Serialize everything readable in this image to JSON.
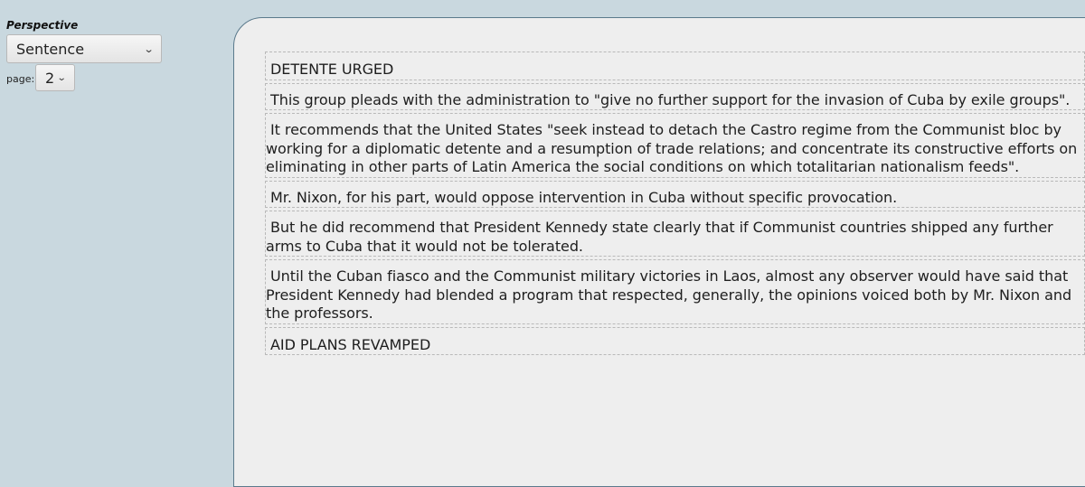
{
  "sidebar": {
    "perspective_label": "Perspective",
    "perspective_value": "Sentence",
    "page_label": "page:",
    "page_value": "2"
  },
  "icons": {
    "dropdown": "chevron-down-icon"
  },
  "colors": {
    "background": "#c9d8df",
    "panel": "#eeeeee",
    "panel_border": "#5b7a8c"
  },
  "sentences": [
    "DETENTE URGED",
    "This group pleads with the administration to \"give no further support for the invasion of Cuba by exile groups\".",
    "It recommends that the United States \"seek instead to detach the Castro regime from the Communist bloc by working for a diplomatic detente and a resumption of trade relations; and concentrate its constructive efforts on eliminating in other parts of Latin America the social conditions on which totalitarian nationalism feeds\".",
    "Mr. Nixon, for his part, would oppose intervention in Cuba without specific provocation.",
    "But he did recommend that President Kennedy state clearly that if Communist countries shipped any further arms to Cuba that it would not be tolerated.",
    "Until the Cuban fiasco and the Communist military victories in Laos, almost any observer would have said that President Kennedy had blended a program that respected, generally, the opinions voiced both by Mr. Nixon and the professors.",
    "AID PLANS REVAMPED"
  ]
}
